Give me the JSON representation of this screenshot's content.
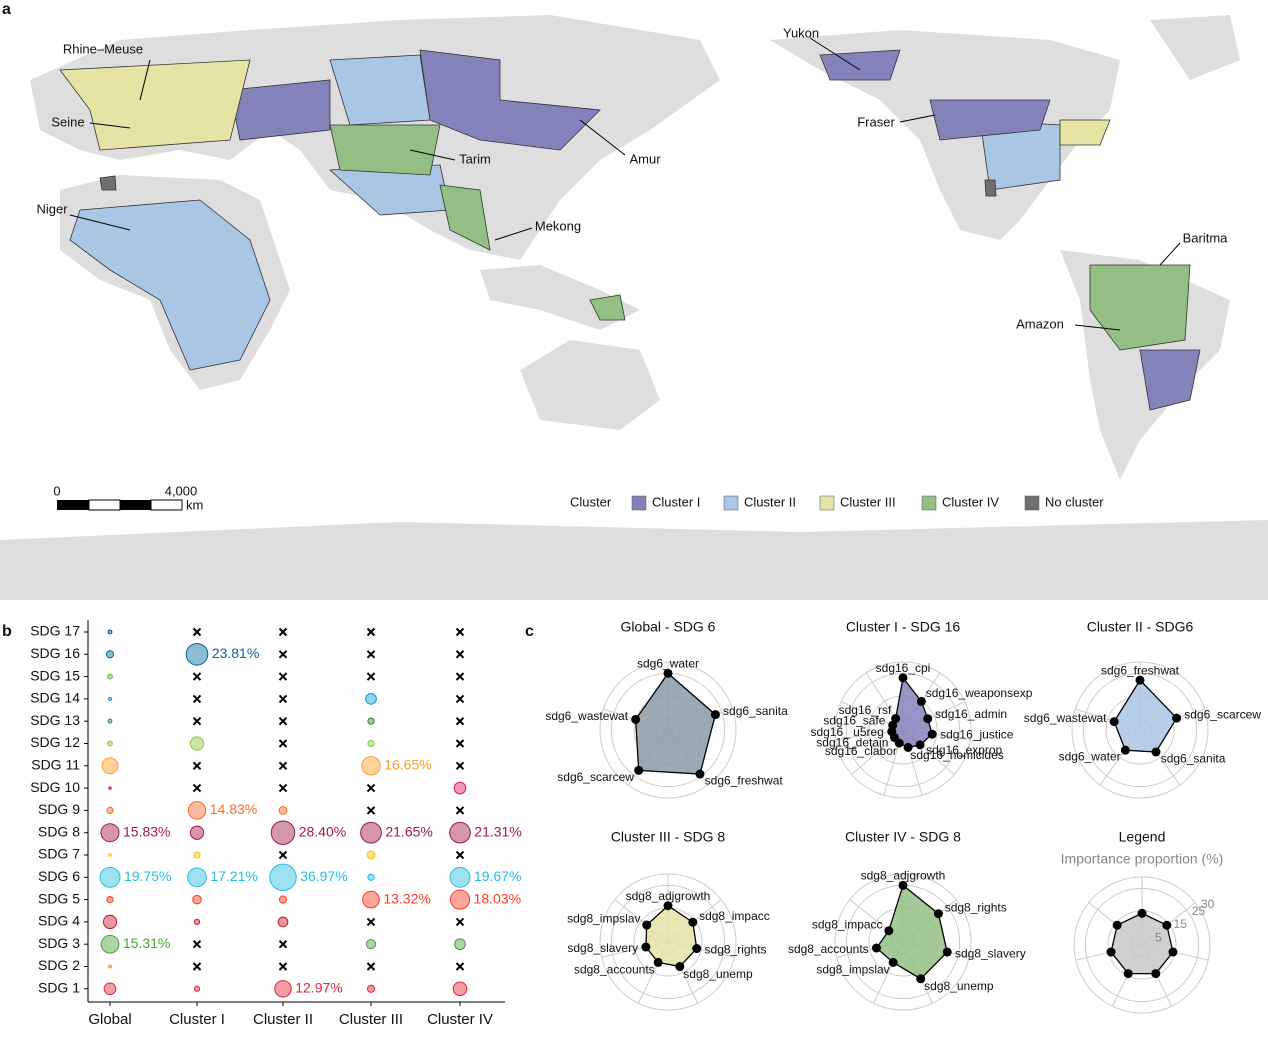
{
  "panel_labels": [
    "a",
    "b",
    "c"
  ],
  "map": {
    "rivers": [
      "Yukon",
      "Rhine–Meuse",
      "Seine",
      "Tarim",
      "Amur",
      "Niger",
      "Mekong",
      "Fraser",
      "Baritma",
      "Amazon"
    ],
    "scale": {
      "labels": [
        "0",
        "4,000"
      ],
      "unit": "km"
    },
    "legend": {
      "title": "Cluster",
      "items": [
        {
          "name": "Cluster I",
          "color": "#8482bb"
        },
        {
          "name": "Cluster II",
          "color": "#a9c6e4"
        },
        {
          "name": "Cluster III",
          "color": "#e6e4a4"
        },
        {
          "name": "Cluster IV",
          "color": "#93bf84"
        },
        {
          "name": "No cluster",
          "color": "#707070"
        }
      ]
    }
  },
  "chart_data": [
    {
      "type": "bubble",
      "categories": [
        "SDG 17",
        "SDG 16",
        "SDG 15",
        "SDG 14",
        "SDG 13",
        "SDG 12",
        "SDG 11",
        "SDG 10",
        "SDG 9",
        "SDG 8",
        "SDG 7",
        "SDG 6",
        "SDG 5",
        "SDG 4",
        "SDG 3",
        "SDG 2",
        "SDG 1"
      ],
      "row_colors": [
        "#19486a",
        "#00689d",
        "#56c02b",
        "#0a97d9",
        "#3f7e44",
        "#8cc63f",
        "#fd9d24",
        "#dd1367",
        "#fd6925",
        "#a21942",
        "#fcc30b",
        "#26bde2",
        "#ff3a21",
        "#c5192d",
        "#4c9f38",
        "#dda63a",
        "#e5243b"
      ],
      "series": [
        {
          "name": "Global",
          "values": [
            0.5,
            2,
            0.8,
            0.3,
            0.5,
            0.8,
            12,
            0.2,
            1.5,
            15.83,
            0.2,
            19.75,
            1.5,
            8,
            15.31,
            0.3,
            6
          ],
          "value_labels": [
            null,
            null,
            null,
            null,
            null,
            null,
            null,
            null,
            null,
            "15.83%",
            null,
            "19.75%",
            null,
            null,
            "15.31%",
            null,
            null
          ]
        },
        {
          "name": "Cluster I",
          "values": [
            null,
            23.81,
            null,
            null,
            null,
            8,
            null,
            null,
            14.83,
            8,
            1.5,
            17.21,
            3,
            1,
            null,
            null,
            1
          ],
          "value_labels": [
            null,
            "23.81%",
            null,
            null,
            null,
            null,
            null,
            null,
            "14.83%",
            null,
            null,
            "17.21%",
            null,
            null,
            null,
            null,
            null
          ]
        },
        {
          "name": "Cluster II",
          "values": [
            null,
            null,
            null,
            null,
            null,
            null,
            null,
            null,
            2.5,
            28.4,
            null,
            36.97,
            2,
            4,
            null,
            null,
            12.97
          ],
          "value_labels": [
            null,
            null,
            null,
            null,
            null,
            null,
            null,
            null,
            null,
            "28.40%",
            null,
            "36.97%",
            null,
            null,
            null,
            null,
            "12.97%"
          ]
        },
        {
          "name": "Cluster III",
          "values": [
            null,
            null,
            null,
            5,
            1.5,
            1.5,
            16.65,
            null,
            null,
            21.65,
            2.5,
            1.5,
            13.32,
            null,
            3.5,
            null,
            2
          ],
          "value_labels": [
            null,
            null,
            null,
            null,
            null,
            null,
            "16.65%",
            null,
            null,
            "21.65%",
            null,
            null,
            "13.32%",
            null,
            null,
            null,
            null
          ]
        },
        {
          "name": "Cluster IV",
          "values": [
            null,
            null,
            null,
            null,
            null,
            null,
            null,
            6,
            null,
            21.31,
            null,
            19.67,
            18.03,
            null,
            5,
            null,
            8.5
          ],
          "value_labels": [
            null,
            null,
            null,
            null,
            null,
            null,
            null,
            null,
            null,
            "21.31%",
            null,
            "19.67%",
            "18.03%",
            null,
            null,
            null,
            null
          ]
        }
      ]
    },
    {
      "type": "radar",
      "rlim": [
        0,
        30
      ],
      "rticks": [
        5,
        15,
        25,
        30
      ],
      "panels": [
        {
          "title": "Global - SDG 6",
          "color": "#8a9aa8",
          "axes": [
            "sdg6_water",
            "sdg6_sanita",
            "sdg6_freshwat",
            "sdg6_scarcew",
            "sdg6_wastewat"
          ],
          "values": [
            25,
            22,
            24,
            22,
            15
          ]
        },
        {
          "title": "Cluster I - SDG 16",
          "color": "#8482bb",
          "axes": [
            "sdg16_cpi",
            "sdg16_weaponsexp",
            "sdg16_admin",
            "sdg16_justice",
            "sdg16_exprop",
            "sdg16_homicides",
            "sdg16_clabor",
            "sdg16_detain",
            "sdg16_ u5reg",
            "sdg16_safe",
            "sdg16_rsf"
          ],
          "values": [
            23,
            15,
            12,
            13,
            10,
            8,
            6,
            5,
            5,
            5,
            6
          ]
        },
        {
          "title": "Cluster II - SDG6",
          "color": "#a9c6e4",
          "axes": [
            "sdg6_freshwat",
            "sdg6_scarcew",
            "sdg6_sanita",
            "sdg6_water",
            "sdg6_wastewat"
          ],
          "values": [
            22,
            17,
            12,
            11,
            12
          ]
        },
        {
          "title": "Cluster III - SDG 8",
          "color": "#e6e4a4",
          "axes": [
            "sdg8_adjgrowth",
            "sdg8_impacc",
            "sdg8_rights",
            "sdg8_unemp",
            "sdg8_accounts",
            "sdg8_slavery",
            "sdg8_impslav"
          ],
          "values": [
            16,
            14,
            13,
            12,
            10,
            10,
            12
          ]
        },
        {
          "title": "Cluster IV - SDG 8",
          "color": "#93bf84",
          "axes": [
            "sdg8_adjgrowth",
            "sdg8_rights",
            "sdg8_slavery",
            "sdg8_unemp",
            "sdg8_impslav",
            "sdg8_accounts",
            "sdg8_impacc"
          ],
          "values": [
            25,
            20,
            20,
            18,
            10,
            12,
            8
          ]
        }
      ],
      "legend": {
        "title": "Legend",
        "subtitle": "Importance proportion (%)",
        "color": "#c8c8c8",
        "values": [
          14,
          14,
          14,
          14,
          14,
          14,
          14
        ]
      }
    }
  ]
}
